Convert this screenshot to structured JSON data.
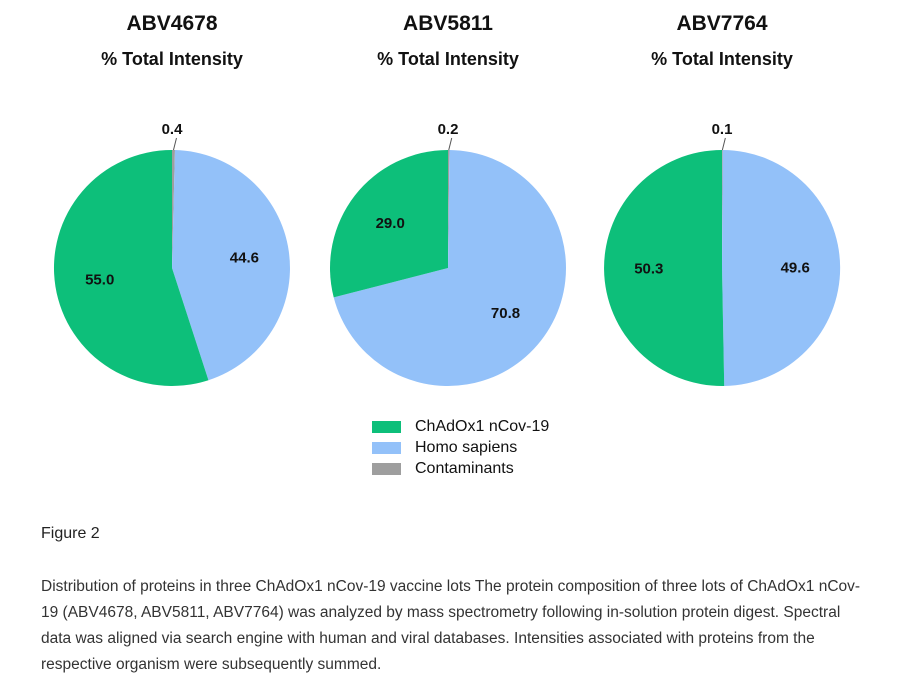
{
  "colors": {
    "ChAdOx1 nCov-19": "#0dbf7a",
    "Homo sapiens": "#93c1f9",
    "Contaminants": "#9e9e9e"
  },
  "chart_data": [
    {
      "type": "pie",
      "title": "ABV4678",
      "subtitle": "% Total Intensity",
      "slices": [
        {
          "label": "Contaminants",
          "value": 0.4
        },
        {
          "label": "Homo sapiens",
          "value": 44.6
        },
        {
          "label": "ChAdOx1 nCov-19",
          "value": 55.0
        }
      ]
    },
    {
      "type": "pie",
      "title": "ABV5811",
      "subtitle": "% Total Intensity",
      "slices": [
        {
          "label": "Contaminants",
          "value": 0.2
        },
        {
          "label": "Homo sapiens",
          "value": 70.8
        },
        {
          "label": "ChAdOx1 nCov-19",
          "value": 29.0
        }
      ]
    },
    {
      "type": "pie",
      "title": "ABV7764",
      "subtitle": "% Total Intensity",
      "slices": [
        {
          "label": "Contaminants",
          "value": 0.1
        },
        {
          "label": "Homo sapiens",
          "value": 49.6
        },
        {
          "label": "ChAdOx1 nCov-19",
          "value": 50.3
        }
      ]
    }
  ],
  "legend": [
    {
      "label": "ChAdOx1 nCov-19"
    },
    {
      "label": "Homo sapiens"
    },
    {
      "label": "Contaminants"
    }
  ],
  "figure_label": "Figure 2",
  "caption": "Distribution of proteins in three ChAdOx1 nCov-19 vaccine lots The protein composition of three lots of ChAdOx1 nCov-19 (ABV4678, ABV5811, ABV7764) was analyzed by mass spectrometry following in-solution protein digest. Spectral data was aligned via search engine with human and viral databases. Intensities associated with proteins from the respective organism were subsequently summed."
}
